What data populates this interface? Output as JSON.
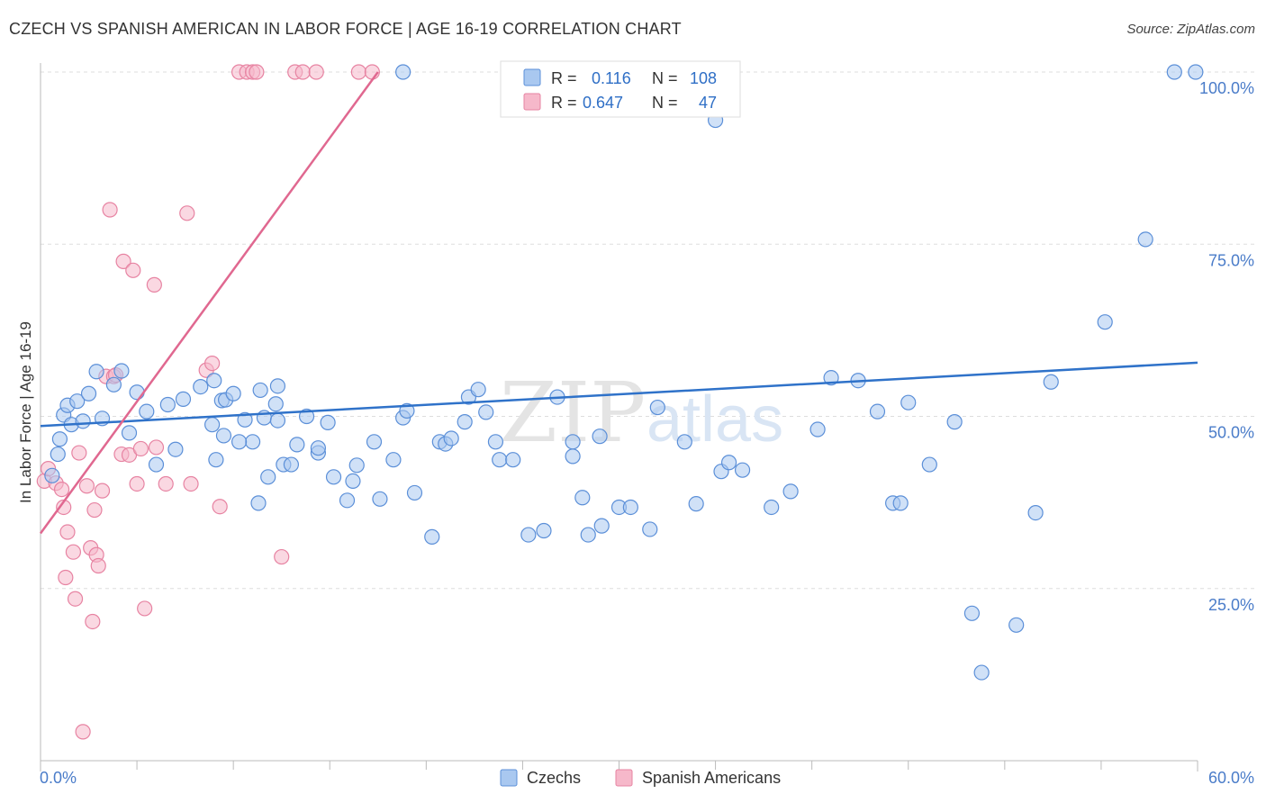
{
  "header": {
    "title": "CZECH VS SPANISH AMERICAN IN LABOR FORCE | AGE 16-19 CORRELATION CHART",
    "source": "Source: ZipAtlas.com"
  },
  "watermark": {
    "zip": "ZIP",
    "atlas": "atlas"
  },
  "legend_top": {
    "r_label": "R =",
    "n_label": "N =",
    "rows": [
      {
        "r": "0.116",
        "n": "108"
      },
      {
        "r": "0.647",
        "n": "47"
      }
    ]
  },
  "colors": {
    "czech_fill": "#a9c8f0",
    "czech_stroke": "#5b8fd8",
    "czech_line": "#2f72c9",
    "spanish_fill": "#f6b8ca",
    "spanish_stroke": "#e783a2",
    "spanish_line": "#e06890",
    "axis_text": "#4a7cc9",
    "grid": "#dddddd"
  },
  "chart_data": {
    "type": "scatter",
    "title": "CZECH VS SPANISH AMERICAN IN LABOR FORCE | AGE 16-19 CORRELATION CHART",
    "xlabel": "",
    "ylabel": "In Labor Force | Age 16-19",
    "xlim": [
      0,
      60
    ],
    "ylim": [
      0,
      103
    ],
    "x_tick_labels": [
      "0.0%",
      "60.0%"
    ],
    "y_ticks": [
      25,
      50,
      75,
      100
    ],
    "y_tick_labels": [
      "25.0%",
      "50.0%",
      "75.0%",
      "100.0%"
    ],
    "grid": true,
    "legend": [
      {
        "label": "Czechs"
      },
      {
        "label": "Spanish Americans"
      }
    ],
    "series": [
      {
        "name": "Czechs",
        "r": 0.116,
        "n": 108,
        "trend": [
          [
            0,
            48.6
          ],
          [
            60,
            57.8
          ]
        ],
        "points": [
          [
            0.6,
            41.4
          ],
          [
            0.9,
            44.5
          ],
          [
            1.0,
            46.7
          ],
          [
            1.2,
            50.2
          ],
          [
            1.4,
            51.6
          ],
          [
            1.6,
            48.8
          ],
          [
            1.9,
            52.2
          ],
          [
            2.2,
            49.3
          ],
          [
            2.5,
            53.3
          ],
          [
            2.9,
            56.5
          ],
          [
            3.2,
            49.7
          ],
          [
            3.8,
            54.6
          ],
          [
            4.2,
            56.6
          ],
          [
            4.6,
            47.6
          ],
          [
            5.0,
            53.5
          ],
          [
            5.5,
            50.7
          ],
          [
            6.0,
            43.0
          ],
          [
            6.6,
            51.7
          ],
          [
            7.0,
            45.2
          ],
          [
            7.4,
            52.5
          ],
          [
            8.3,
            54.3
          ],
          [
            9.0,
            55.2
          ],
          [
            8.9,
            48.8
          ],
          [
            9.1,
            43.7
          ],
          [
            9.5,
            47.2
          ],
          [
            9.4,
            52.3
          ],
          [
            9.6,
            52.4
          ],
          [
            10.0,
            53.3
          ],
          [
            10.6,
            49.5
          ],
          [
            11.0,
            46.3
          ],
          [
            11.3,
            37.4
          ],
          [
            10.3,
            46.3
          ],
          [
            11.4,
            53.8
          ],
          [
            11.8,
            41.2
          ],
          [
            11.6,
            49.8
          ],
          [
            12.3,
            54.4
          ],
          [
            12.2,
            51.8
          ],
          [
            12.3,
            49.4
          ],
          [
            12.6,
            43.0
          ],
          [
            13.0,
            43.0
          ],
          [
            13.3,
            45.9
          ],
          [
            13.8,
            50.0
          ],
          [
            14.4,
            44.7
          ],
          [
            14.4,
            45.4
          ],
          [
            14.9,
            49.1
          ],
          [
            15.2,
            41.2
          ],
          [
            15.9,
            37.8
          ],
          [
            16.2,
            40.6
          ],
          [
            16.4,
            42.9
          ],
          [
            17.3,
            46.3
          ],
          [
            17.6,
            38.0
          ],
          [
            18.3,
            43.7
          ],
          [
            18.8,
            49.8
          ],
          [
            19.0,
            50.8
          ],
          [
            19.4,
            38.9
          ],
          [
            20.3,
            32.5
          ],
          [
            20.7,
            46.3
          ],
          [
            21.0,
            46.0
          ],
          [
            21.3,
            46.8
          ],
          [
            22.0,
            49.2
          ],
          [
            22.2,
            52.8
          ],
          [
            22.7,
            53.9
          ],
          [
            23.1,
            50.6
          ],
          [
            23.6,
            46.3
          ],
          [
            23.8,
            43.7
          ],
          [
            24.5,
            43.7
          ],
          [
            25.3,
            32.8
          ],
          [
            26.1,
            33.4
          ],
          [
            26.8,
            52.8
          ],
          [
            27.6,
            46.3
          ],
          [
            27.6,
            44.2
          ],
          [
            28.1,
            38.2
          ],
          [
            28.4,
            32.8
          ],
          [
            29.0,
            47.1
          ],
          [
            29.1,
            34.1
          ],
          [
            30.0,
            36.8
          ],
          [
            30.6,
            36.8
          ],
          [
            31.6,
            33.6
          ],
          [
            32.0,
            51.3
          ],
          [
            33.4,
            46.3
          ],
          [
            34.0,
            37.3
          ],
          [
            35.3,
            42.0
          ],
          [
            35.7,
            43.3
          ],
          [
            36.4,
            42.2
          ],
          [
            37.9,
            36.8
          ],
          [
            38.9,
            39.1
          ],
          [
            40.3,
            48.1
          ],
          [
            41.0,
            55.6
          ],
          [
            42.4,
            55.2
          ],
          [
            43.4,
            50.7
          ],
          [
            44.2,
            37.4
          ],
          [
            44.6,
            37.4
          ],
          [
            45.0,
            52.0
          ],
          [
            46.1,
            43.0
          ],
          [
            47.4,
            49.2
          ],
          [
            48.3,
            21.4
          ],
          [
            48.8,
            12.8
          ],
          [
            50.6,
            19.7
          ],
          [
            51.6,
            36.0
          ],
          [
            52.4,
            55.0
          ],
          [
            55.2,
            63.7
          ],
          [
            57.3,
            75.7
          ],
          [
            58.8,
            100.0
          ],
          [
            59.9,
            100.0
          ],
          [
            18.8,
            100.0
          ],
          [
            29.7,
            100.0
          ],
          [
            33.0,
            100.0
          ],
          [
            35.0,
            93.0
          ]
        ]
      },
      {
        "name": "Spanish Americans",
        "r": 0.647,
        "n": 47,
        "trend": [
          [
            0,
            33.0
          ],
          [
            17.5,
            100.0
          ]
        ],
        "points": [
          [
            0.2,
            40.6
          ],
          [
            0.4,
            42.4
          ],
          [
            0.8,
            40.3
          ],
          [
            1.1,
            39.4
          ],
          [
            1.2,
            36.8
          ],
          [
            1.3,
            26.6
          ],
          [
            1.4,
            33.2
          ],
          [
            1.7,
            30.3
          ],
          [
            1.8,
            23.5
          ],
          [
            2.0,
            44.7
          ],
          [
            2.2,
            4.2
          ],
          [
            2.4,
            39.9
          ],
          [
            2.6,
            30.9
          ],
          [
            2.7,
            20.2
          ],
          [
            2.8,
            36.4
          ],
          [
            2.9,
            29.9
          ],
          [
            3.0,
            28.3
          ],
          [
            3.2,
            39.2
          ],
          [
            3.4,
            55.8
          ],
          [
            3.6,
            80.0
          ],
          [
            3.8,
            55.8
          ],
          [
            3.9,
            56.0
          ],
          [
            4.2,
            44.5
          ],
          [
            4.3,
            72.5
          ],
          [
            4.6,
            44.4
          ],
          [
            4.8,
            71.2
          ],
          [
            5.0,
            40.2
          ],
          [
            5.2,
            45.3
          ],
          [
            5.4,
            22.1
          ],
          [
            5.9,
            69.1
          ],
          [
            6.0,
            45.5
          ],
          [
            6.5,
            40.2
          ],
          [
            7.6,
            79.5
          ],
          [
            7.8,
            40.2
          ],
          [
            8.6,
            56.7
          ],
          [
            8.9,
            57.7
          ],
          [
            9.3,
            36.9
          ],
          [
            10.3,
            100.0
          ],
          [
            10.7,
            100.0
          ],
          [
            11.0,
            100.0
          ],
          [
            11.2,
            100.0
          ],
          [
            12.5,
            29.6
          ],
          [
            13.2,
            100.0
          ],
          [
            13.6,
            100.0
          ],
          [
            14.3,
            100.0
          ],
          [
            16.5,
            100.0
          ],
          [
            17.2,
            100.0
          ]
        ]
      }
    ]
  }
}
